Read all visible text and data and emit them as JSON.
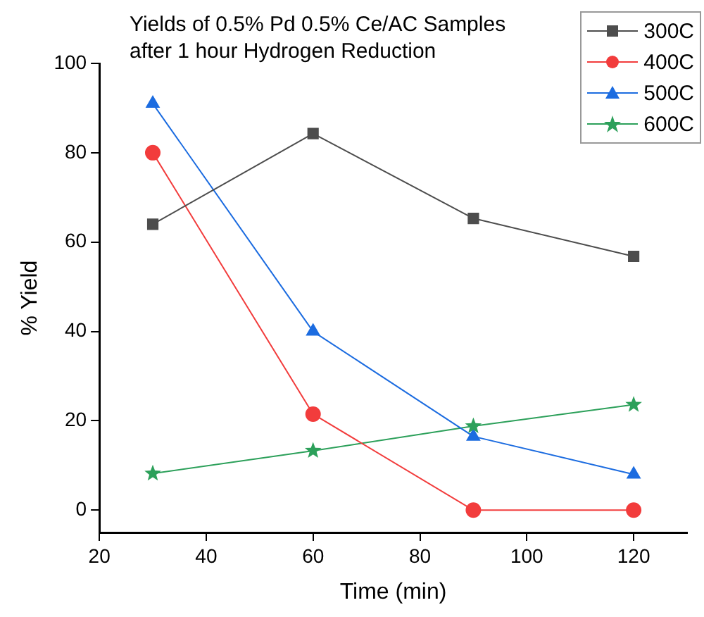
{
  "chart_data": {
    "type": "line",
    "title": "Yields of 0.5% Pd 0.5% Ce/AC Samples\nafter 1 hour Hydrogen Reduction",
    "xlabel": "Time (min)",
    "ylabel": "% Yield",
    "x": [
      30,
      60,
      90,
      120
    ],
    "xlim": [
      20,
      130
    ],
    "xticks": [
      20,
      40,
      60,
      80,
      100,
      120
    ],
    "ylim": [
      -5,
      100
    ],
    "yticks": [
      0,
      20,
      40,
      60,
      80,
      100
    ],
    "grid": false,
    "legend": "top right",
    "line_style": "solid",
    "series": [
      {
        "name": "300C",
        "color": "#4d4d4d",
        "marker": "square",
        "values": [
          64,
          84.3,
          65.3,
          56.8
        ]
      },
      {
        "name": "400C",
        "color": "#f23c3c",
        "marker": "circle",
        "values": [
          80,
          21.5,
          0,
          0
        ]
      },
      {
        "name": "500C",
        "color": "#1c6ce0",
        "marker": "triangle",
        "values": [
          91,
          40,
          16.5,
          8
        ]
      },
      {
        "name": "600C",
        "color": "#2ca05a",
        "marker": "star",
        "values": [
          8.2,
          13.3,
          18.8,
          23.6
        ]
      }
    ]
  }
}
